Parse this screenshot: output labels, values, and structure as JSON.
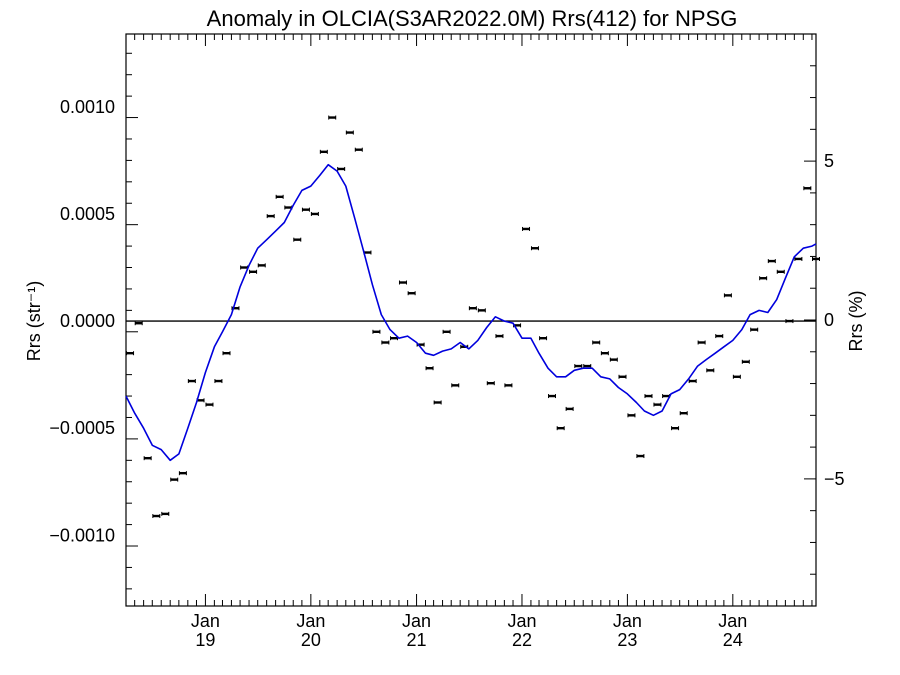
{
  "chart_data": {
    "type": "line",
    "title": "Anomaly in OLCIA(S3AR2022.0M) Rrs(412) for NPSG",
    "ylabel_left": "Rrs (str⁻¹)",
    "ylabel_right": "Rrs (%)",
    "xlim": [
      "2018-04-01",
      "2024-10-15"
    ],
    "ylim_left": [
      -0.00133,
      0.00134
    ],
    "ylim_right": [
      -9.0,
      9.0
    ],
    "grid": false,
    "x_ticks": [
      {
        "date": "2019-01-01",
        "label_top": "Jan",
        "label_bottom": "19"
      },
      {
        "date": "2020-01-01",
        "label_top": "Jan",
        "label_bottom": "20"
      },
      {
        "date": "2021-01-01",
        "label_top": "Jan",
        "label_bottom": "21"
      },
      {
        "date": "2022-01-01",
        "label_top": "Jan",
        "label_bottom": "22"
      },
      {
        "date": "2023-01-01",
        "label_top": "Jan",
        "label_bottom": "23"
      },
      {
        "date": "2024-01-01",
        "label_top": "Jan",
        "label_bottom": "24"
      }
    ],
    "y_ticks_left": [
      {
        "value": 0.001,
        "label": "0.0010"
      },
      {
        "value": 0.0005,
        "label": "0.0005"
      },
      {
        "value": 0.0,
        "label": "0.0000"
      },
      {
        "value": -0.0005,
        "label": "−0.0005"
      },
      {
        "value": -0.001,
        "label": "−0.0010"
      }
    ],
    "y_ticks_right": [
      {
        "value": 5,
        "label": "5"
      },
      {
        "value": 0,
        "label": "0"
      },
      {
        "value": -5,
        "label": "−5"
      }
    ],
    "reference_line_y": 0,
    "series": [
      {
        "kind": "points_with_error_bars",
        "color": "#000000",
        "x": [
          "2018-04-15",
          "2018-05-15",
          "2018-06-15",
          "2018-07-15",
          "2018-08-15",
          "2018-09-15",
          "2018-10-15",
          "2018-11-15",
          "2018-12-15",
          "2019-01-15",
          "2019-02-15",
          "2019-03-15",
          "2019-04-15",
          "2019-05-15",
          "2019-06-15",
          "2019-07-15",
          "2019-08-15",
          "2019-09-15",
          "2019-10-15",
          "2019-11-15",
          "2019-12-15",
          "2020-01-15",
          "2020-02-15",
          "2020-03-15",
          "2020-04-15",
          "2020-05-15",
          "2020-06-15",
          "2020-07-15",
          "2020-08-15",
          "2020-09-15",
          "2020-10-15",
          "2020-11-15",
          "2020-12-15",
          "2021-01-15",
          "2021-02-15",
          "2021-03-15",
          "2021-04-15",
          "2021-05-15",
          "2021-06-15",
          "2021-07-15",
          "2021-08-15",
          "2021-09-15",
          "2021-10-15",
          "2021-11-15",
          "2021-12-15",
          "2022-01-15",
          "2022-02-15",
          "2022-03-15",
          "2022-04-15",
          "2022-05-15",
          "2022-06-15",
          "2022-07-15",
          "2022-08-15",
          "2022-09-15",
          "2022-10-15",
          "2022-11-15",
          "2022-12-15",
          "2023-01-15",
          "2023-02-15",
          "2023-03-15",
          "2023-04-15",
          "2023-05-15",
          "2023-06-15",
          "2023-07-15",
          "2023-08-15",
          "2023-09-15",
          "2023-10-15",
          "2023-11-15",
          "2023-12-15",
          "2024-01-15",
          "2024-02-15",
          "2024-03-15",
          "2024-04-15",
          "2024-05-15",
          "2024-06-15",
          "2024-07-15",
          "2024-08-15",
          "2024-09-15",
          "2024-10-15"
        ],
        "y": [
          -0.00015,
          -1e-05,
          -0.00064,
          -0.00091,
          -0.0009,
          -0.00074,
          -0.00071,
          -0.00028,
          -0.00037,
          -0.00039,
          -0.00028,
          -0.00015,
          6e-05,
          0.00025,
          0.00023,
          0.00026,
          0.00049,
          0.00058,
          0.00053,
          0.00038,
          0.00052,
          0.0005,
          0.00079,
          0.00095,
          0.00071,
          0.00088,
          0.0008,
          0.00032,
          -5e-05,
          -0.0001,
          -8e-05,
          0.00018,
          0.00013,
          -0.00011,
          -0.00022,
          -0.00038,
          -5e-05,
          -0.0003,
          -0.00012,
          6e-05,
          5e-05,
          -0.00029,
          -7e-05,
          -0.0003,
          -2e-05,
          0.00043,
          0.00034,
          -8e-05,
          -0.00035,
          -0.0005,
          -0.00041,
          -0.00021,
          -0.00021,
          -0.0001,
          -0.00015,
          -0.00018,
          -0.00026,
          -0.00044,
          -0.00063,
          -0.00035,
          -0.00039,
          -0.00035,
          -0.0005,
          -0.00043,
          -0.00028,
          -0.0001,
          -0.00023,
          -7e-05,
          0.00012,
          -0.00026,
          -0.00019,
          -4e-05,
          0.0002,
          0.00028,
          0.00023,
          0.0,
          0.00029,
          0.00062,
          0.00029
        ]
      },
      {
        "kind": "line",
        "color": "#0000dd",
        "x": [
          "2018-04-01",
          "2018-05-01",
          "2018-06-01",
          "2018-07-01",
          "2018-08-01",
          "2018-09-01",
          "2018-10-01",
          "2018-11-01",
          "2018-12-01",
          "2019-01-01",
          "2019-02-01",
          "2019-03-01",
          "2019-04-01",
          "2019-05-01",
          "2019-06-01",
          "2019-07-01",
          "2019-08-01",
          "2019-09-01",
          "2019-10-01",
          "2019-11-01",
          "2019-12-01",
          "2020-01-01",
          "2020-02-01",
          "2020-03-01",
          "2020-04-01",
          "2020-05-01",
          "2020-06-01",
          "2020-07-01",
          "2020-08-01",
          "2020-09-01",
          "2020-10-01",
          "2020-11-01",
          "2020-12-01",
          "2021-01-01",
          "2021-02-01",
          "2021-03-01",
          "2021-04-01",
          "2021-05-01",
          "2021-06-01",
          "2021-07-01",
          "2021-08-01",
          "2021-09-01",
          "2021-10-01",
          "2021-11-01",
          "2021-12-01",
          "2022-01-01",
          "2022-02-01",
          "2022-03-01",
          "2022-04-01",
          "2022-05-01",
          "2022-06-01",
          "2022-07-01",
          "2022-08-01",
          "2022-09-01",
          "2022-10-01",
          "2022-11-01",
          "2022-12-01",
          "2023-01-01",
          "2023-02-01",
          "2023-03-01",
          "2023-04-01",
          "2023-05-01",
          "2023-06-01",
          "2023-07-01",
          "2023-08-01",
          "2023-09-01",
          "2023-10-01",
          "2023-11-01",
          "2023-12-01",
          "2024-01-01",
          "2024-02-01",
          "2024-03-01",
          "2024-04-01",
          "2024-05-01",
          "2024-06-01",
          "2024-07-01",
          "2024-08-01",
          "2024-09-01",
          "2024-10-01",
          "2024-10-15"
        ],
        "y": [
          -0.00035,
          -0.00043,
          -0.0005,
          -0.00058,
          -0.0006,
          -0.00065,
          -0.00062,
          -0.0005,
          -0.00038,
          -0.00024,
          -0.00012,
          -5e-05,
          3e-05,
          0.00016,
          0.00026,
          0.00034,
          0.00038,
          0.00042,
          0.00046,
          0.00054,
          0.00061,
          0.00063,
          0.00068,
          0.00073,
          0.0007,
          0.00063,
          0.00048,
          0.00033,
          0.00017,
          3e-05,
          -4e-05,
          -8e-05,
          -7e-05,
          -0.0001,
          -0.00015,
          -0.00016,
          -0.00014,
          -0.00013,
          -0.0001,
          -0.00013,
          -9e-05,
          -3e-05,
          2e-05,
          0.0,
          -1e-05,
          -8e-05,
          -8e-05,
          -0.00015,
          -0.00022,
          -0.00026,
          -0.00026,
          -0.00023,
          -0.00022,
          -0.00022,
          -0.00026,
          -0.00027,
          -0.00031,
          -0.00034,
          -0.00038,
          -0.00042,
          -0.00044,
          -0.00042,
          -0.00034,
          -0.00032,
          -0.00027,
          -0.00021,
          -0.00018,
          -0.00015,
          -0.00012,
          -9e-05,
          -4e-05,
          3e-05,
          5e-05,
          4e-05,
          0.0001,
          0.0002,
          0.0003,
          0.00034,
          0.00035,
          0.00036
        ]
      }
    ]
  }
}
